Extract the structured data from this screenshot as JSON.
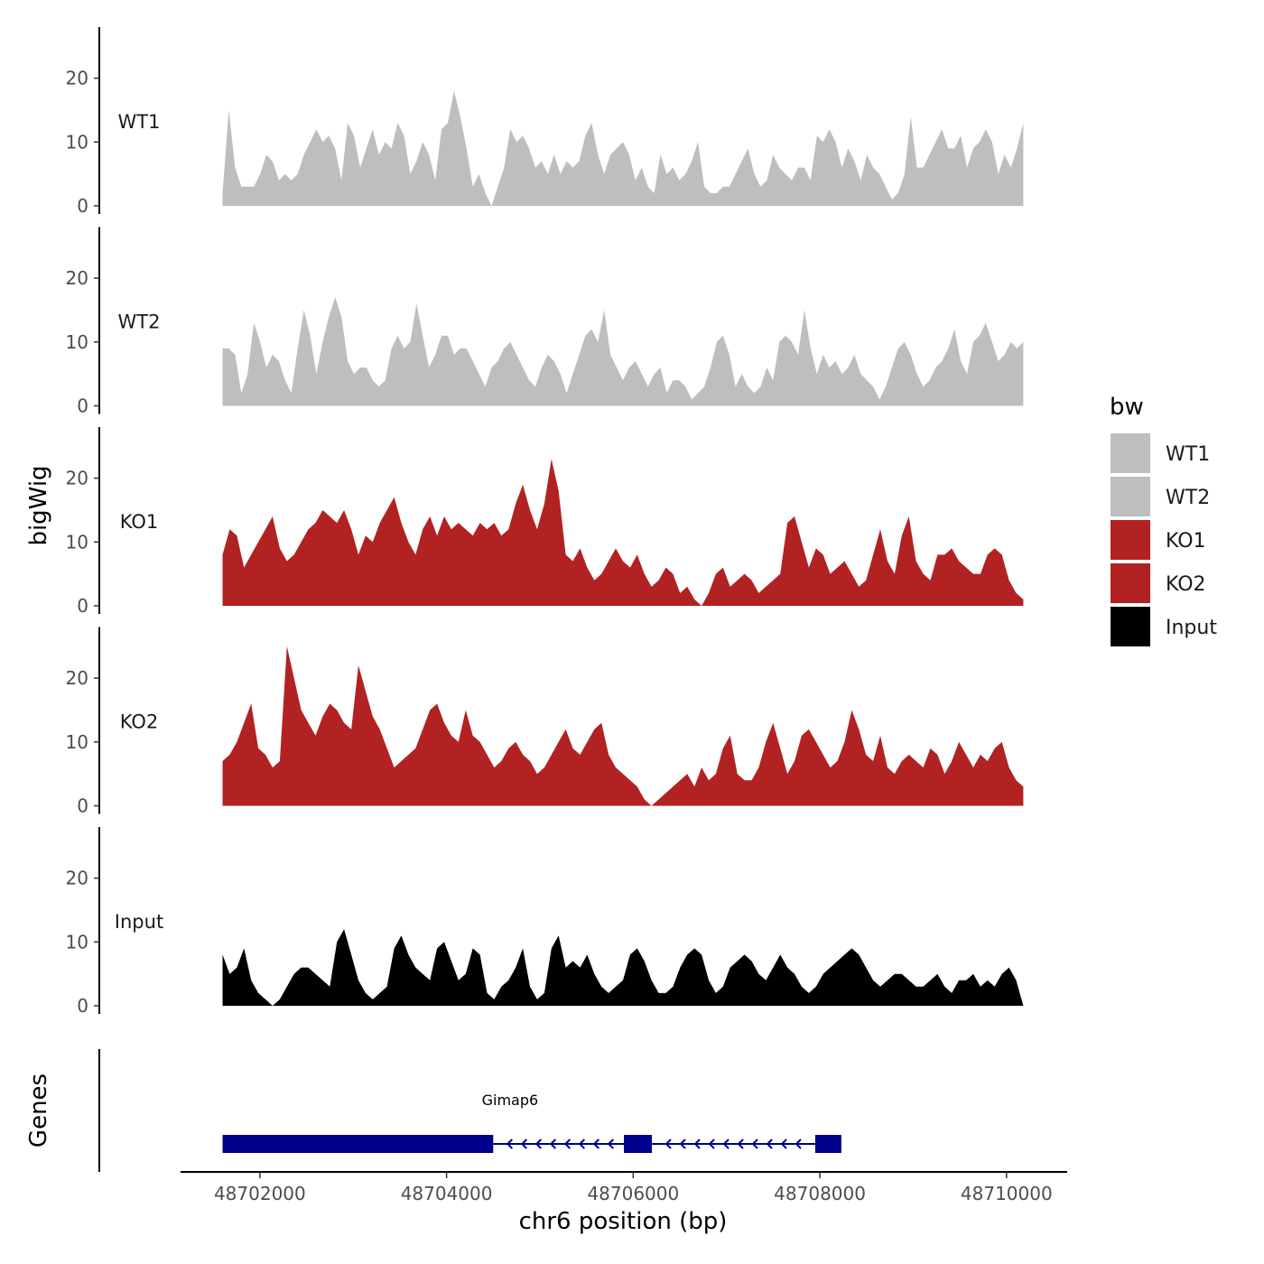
{
  "chart_data": {
    "type": "area",
    "title": "",
    "ylabel": "bigWig",
    "xlabel": "chr6 position (bp)",
    "xlim": [
      48701150,
      48710650
    ],
    "x_ticks": [
      48702000,
      48704000,
      48706000,
      48708000,
      48710000
    ],
    "x_tick_labels": [
      "48702000",
      "48704000",
      "48706000",
      "48708000",
      "48710000"
    ],
    "ylim": [
      0,
      28
    ],
    "y_ticks": [
      0,
      10,
      20
    ],
    "y_tick_labels": [
      "0",
      "10",
      "20"
    ],
    "x_start": 48701600,
    "x_end": 48710180,
    "legend": {
      "title": "bw",
      "position": "right"
    },
    "series": [
      {
        "name": "WT1",
        "color": "#bebebe",
        "values": [
          2,
          15,
          6,
          3,
          3,
          3,
          5,
          8,
          7,
          4,
          5,
          4,
          5,
          8,
          10,
          12,
          10,
          11,
          9,
          4,
          13,
          11,
          6,
          9,
          12,
          8,
          10,
          9,
          13,
          11,
          5,
          7,
          10,
          8,
          4,
          12,
          13,
          18,
          14,
          9,
          3,
          5,
          2,
          0,
          3,
          6,
          12,
          10,
          11,
          9,
          6,
          7,
          5,
          8,
          5,
          7,
          6,
          7,
          11,
          13,
          8,
          5,
          8,
          9,
          10,
          8,
          4,
          6,
          3,
          2,
          8,
          5,
          6,
          4,
          5,
          7,
          10,
          3,
          2,
          2,
          3,
          3,
          5,
          7,
          9,
          5,
          3,
          4,
          8,
          6,
          5,
          4,
          6,
          6,
          4,
          11,
          10,
          12,
          10,
          6,
          9,
          7,
          4,
          8,
          6,
          5,
          3,
          1,
          2,
          5,
          14,
          6,
          6,
          8,
          10,
          12,
          9,
          9,
          11,
          6,
          9,
          10,
          12,
          10,
          5,
          8,
          6,
          9,
          13
        ]
      },
      {
        "name": "WT2",
        "color": "#bebebe",
        "values": [
          9,
          9,
          8,
          2,
          5,
          13,
          10,
          6,
          8,
          7,
          4,
          2,
          9,
          15,
          11,
          5,
          10,
          14,
          17,
          14,
          7,
          5,
          6,
          6,
          4,
          3,
          4,
          9,
          11,
          9,
          10,
          16,
          11,
          6,
          8,
          11,
          11,
          8,
          9,
          9,
          7,
          5,
          3,
          6,
          7,
          9,
          10,
          8,
          6,
          4,
          3,
          6,
          8,
          7,
          5,
          2,
          5,
          8,
          11,
          12,
          10,
          15,
          8,
          6,
          4,
          6,
          7,
          5,
          3,
          5,
          6,
          2,
          4,
          4,
          3,
          1,
          2,
          3,
          6,
          10,
          11,
          8,
          3,
          5,
          3,
          2,
          3,
          6,
          4,
          10,
          11,
          10,
          8,
          15,
          9,
          5,
          8,
          6,
          7,
          5,
          6,
          8,
          5,
          4,
          3,
          1,
          3,
          6,
          9,
          10,
          8,
          5,
          3,
          4,
          6,
          7,
          9,
          12,
          7,
          5,
          10,
          11,
          13,
          10,
          7,
          8,
          10,
          9,
          10
        ]
      },
      {
        "name": "KO1",
        "color": "#b22222",
        "values": [
          8,
          12,
          11,
          6,
          8,
          10,
          12,
          14,
          9,
          7,
          8,
          10,
          12,
          13,
          15,
          14,
          13,
          15,
          12,
          8,
          11,
          10,
          13,
          15,
          17,
          13,
          10,
          8,
          12,
          14,
          11,
          14,
          12,
          13,
          12,
          11,
          13,
          12,
          13,
          11,
          12,
          16,
          19,
          15,
          12,
          16,
          23,
          18,
          8,
          7,
          9,
          6,
          4,
          5,
          7,
          9,
          7,
          6,
          8,
          5,
          3,
          4,
          6,
          5,
          2,
          3,
          1,
          0,
          2,
          5,
          6,
          3,
          4,
          5,
          4,
          2,
          3,
          4,
          5,
          13,
          14,
          10,
          6,
          9,
          8,
          5,
          6,
          7,
          5,
          3,
          4,
          8,
          12,
          7,
          5,
          11,
          14,
          7,
          5,
          4,
          8,
          8,
          9,
          7,
          6,
          5,
          5,
          8,
          9,
          8,
          4,
          2,
          1
        ]
      },
      {
        "name": "KO2",
        "color": "#b22222",
        "values": [
          7,
          8,
          10,
          13,
          16,
          9,
          8,
          6,
          7,
          25,
          20,
          15,
          13,
          11,
          14,
          16,
          15,
          13,
          12,
          22,
          18,
          14,
          12,
          9,
          6,
          7,
          8,
          9,
          12,
          15,
          16,
          13,
          11,
          10,
          15,
          11,
          10,
          8,
          6,
          7,
          9,
          10,
          8,
          7,
          5,
          6,
          8,
          10,
          12,
          9,
          8,
          10,
          12,
          13,
          8,
          6,
          5,
          4,
          3,
          1,
          0,
          1,
          2,
          3,
          4,
          5,
          3,
          6,
          4,
          5,
          9,
          11,
          5,
          4,
          4,
          6,
          10,
          13,
          9,
          5,
          7,
          11,
          12,
          10,
          8,
          6,
          7,
          10,
          15,
          12,
          8,
          7,
          11,
          6,
          5,
          7,
          8,
          7,
          6,
          9,
          8,
          5,
          7,
          10,
          8,
          6,
          8,
          7,
          9,
          10,
          6,
          4,
          3
        ]
      },
      {
        "name": "Input",
        "color": "#000000",
        "values": [
          8,
          5,
          6,
          9,
          4,
          2,
          1,
          0,
          1,
          3,
          5,
          6,
          6,
          5,
          4,
          3,
          10,
          12,
          8,
          4,
          2,
          1,
          2,
          3,
          9,
          11,
          8,
          6,
          5,
          4,
          9,
          10,
          7,
          4,
          5,
          9,
          8,
          2,
          1,
          3,
          4,
          6,
          9,
          3,
          1,
          2,
          9,
          11,
          6,
          7,
          6,
          8,
          5,
          3,
          2,
          3,
          4,
          8,
          9,
          7,
          4,
          2,
          2,
          3,
          6,
          8,
          9,
          8,
          4,
          2,
          3,
          6,
          7,
          8,
          7,
          5,
          4,
          6,
          8,
          6,
          5,
          3,
          2,
          3,
          5,
          6,
          7,
          8,
          9,
          8,
          6,
          4,
          3,
          4,
          5,
          5,
          4,
          3,
          3,
          4,
          5,
          3,
          2,
          4,
          4,
          5,
          3,
          4,
          3,
          5,
          6,
          4,
          0
        ]
      }
    ],
    "gene_track": {
      "label": "Genes",
      "gene_name": "Gimap6",
      "strand": "-",
      "color": "#00008b",
      "start": 48701600,
      "end": 48708230,
      "exons": [
        [
          48701600,
          48704500
        ],
        [
          48705900,
          48706200
        ],
        [
          48707950,
          48708230
        ]
      ]
    }
  }
}
